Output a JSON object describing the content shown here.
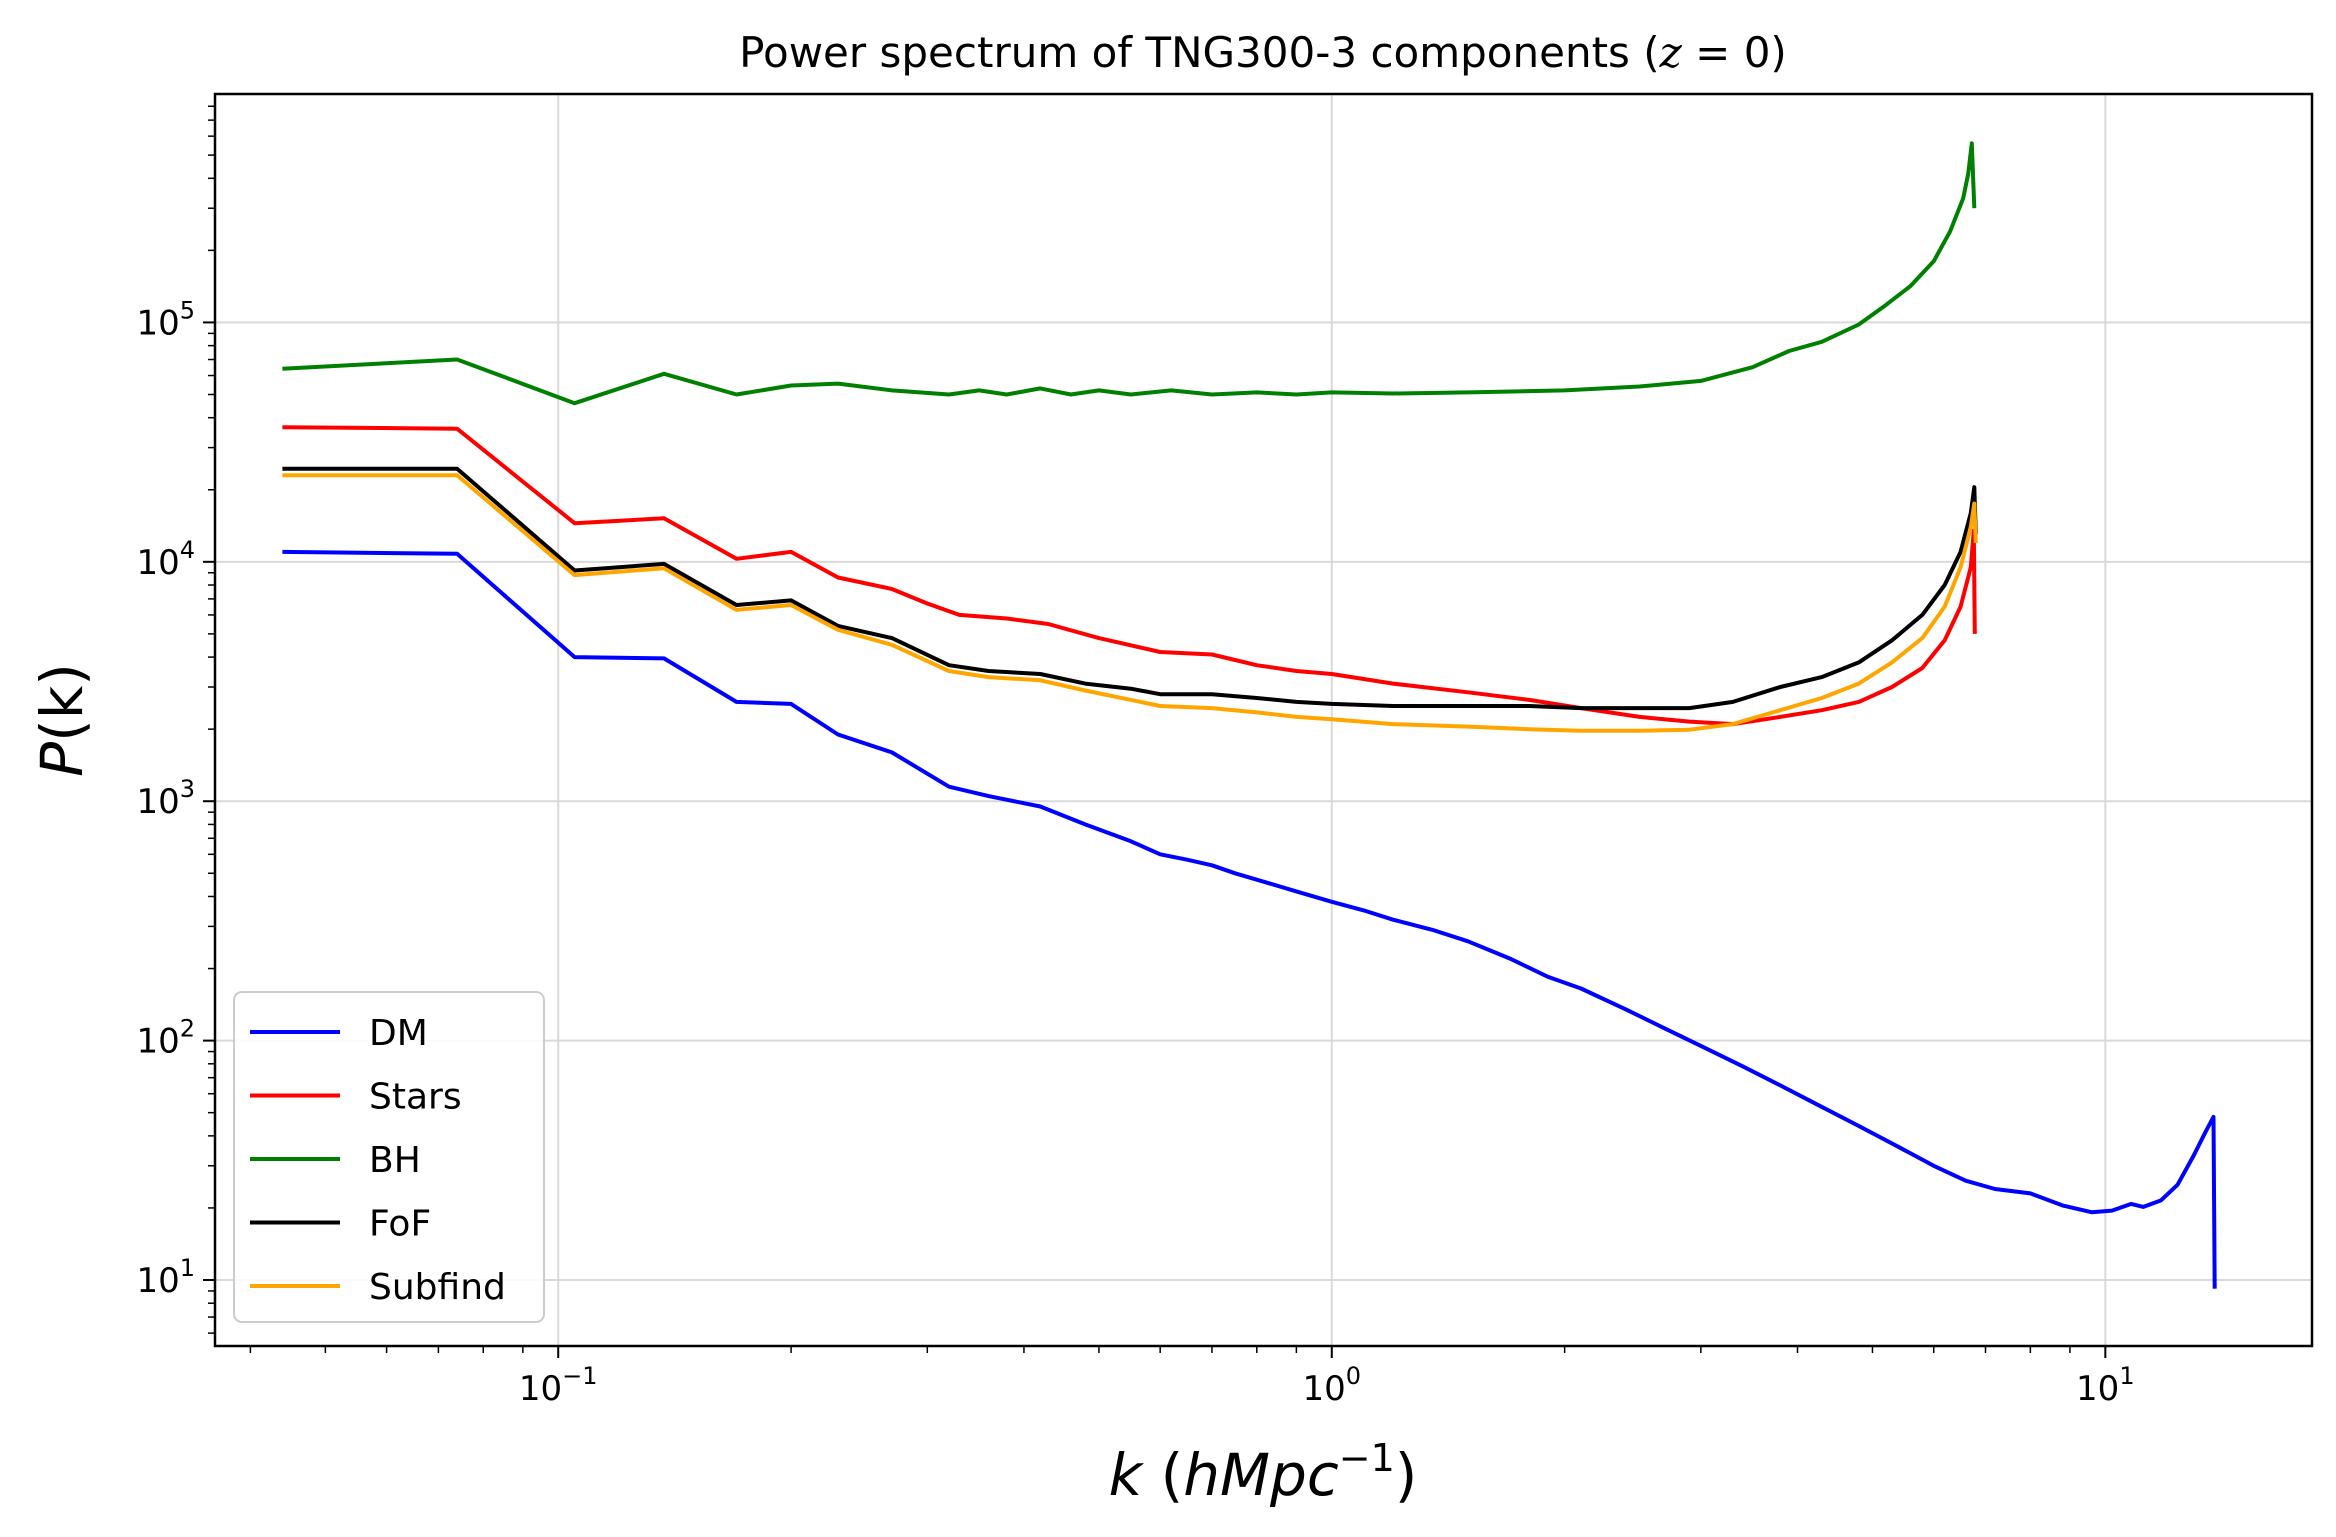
{
  "chart_data": {
    "type": "line",
    "title": "Power spectrum of TNG300-3 components (",
    "title_math": "z",
    "title_tail": " = 0)",
    "xlabel_var": "k",
    "xlabel_units_open": "(",
    "xlabel_units": "hMpc",
    "xlabel_exp": "−1",
    "xlabel_units_close": ")",
    "ylabel_var": "P",
    "ylabel_arg": "(k)",
    "xscale": "log",
    "yscale": "log",
    "xlim": [
      0.036,
      18.5
    ],
    "ylim": [
      5.3,
      900000
    ],
    "grid": true,
    "legend_position": "lower-left",
    "x_ticks": [
      {
        "value": 0.1,
        "base": "10",
        "exp": "−1"
      },
      {
        "value": 1,
        "base": "10",
        "exp": "0"
      },
      {
        "value": 10,
        "base": "10",
        "exp": "1"
      }
    ],
    "y_ticks": [
      {
        "value": 10,
        "base": "10",
        "exp": "1"
      },
      {
        "value": 100,
        "base": "10",
        "exp": "2"
      },
      {
        "value": 1000,
        "base": "10",
        "exp": "3"
      },
      {
        "value": 10000,
        "base": "10",
        "exp": "4"
      },
      {
        "value": 100000,
        "base": "10",
        "exp": "5"
      }
    ],
    "series": [
      {
        "name": "DM",
        "color": "#0000ff",
        "points": [
          [
            0.044,
            11000
          ],
          [
            0.074,
            10800
          ],
          [
            0.105,
            4000
          ],
          [
            0.137,
            3950
          ],
          [
            0.17,
            2600
          ],
          [
            0.2,
            2550
          ],
          [
            0.23,
            1900
          ],
          [
            0.27,
            1600
          ],
          [
            0.32,
            1150
          ],
          [
            0.36,
            1050
          ],
          [
            0.42,
            950
          ],
          [
            0.48,
            800
          ],
          [
            0.55,
            680
          ],
          [
            0.6,
            600
          ],
          [
            0.65,
            570
          ],
          [
            0.7,
            540
          ],
          [
            0.75,
            500
          ],
          [
            0.8,
            470
          ],
          [
            0.9,
            420
          ],
          [
            1.0,
            380
          ],
          [
            1.1,
            350
          ],
          [
            1.2,
            320
          ],
          [
            1.35,
            290
          ],
          [
            1.5,
            260
          ],
          [
            1.7,
            220
          ],
          [
            1.9,
            185
          ],
          [
            2.1,
            165
          ],
          [
            2.4,
            135
          ],
          [
            2.7,
            112
          ],
          [
            3.0,
            95
          ],
          [
            3.4,
            78
          ],
          [
            3.8,
            65
          ],
          [
            4.2,
            55
          ],
          [
            4.8,
            44
          ],
          [
            5.4,
            36
          ],
          [
            6.0,
            30
          ],
          [
            6.6,
            26
          ],
          [
            7.2,
            24
          ],
          [
            8.0,
            23
          ],
          [
            8.8,
            20.5
          ],
          [
            9.6,
            19.2
          ],
          [
            10.2,
            19.5
          ],
          [
            10.8,
            20.8
          ],
          [
            11.2,
            20.2
          ],
          [
            11.8,
            21.5
          ],
          [
            12.4,
            25
          ],
          [
            13.0,
            33
          ],
          [
            13.5,
            42
          ],
          [
            13.8,
            48
          ],
          [
            13.85,
            9.2
          ]
        ]
      },
      {
        "name": "Stars",
        "color": "#ff0000",
        "points": [
          [
            0.044,
            36500
          ],
          [
            0.074,
            36000
          ],
          [
            0.105,
            14500
          ],
          [
            0.137,
            15200
          ],
          [
            0.17,
            10300
          ],
          [
            0.2,
            11000
          ],
          [
            0.23,
            8600
          ],
          [
            0.27,
            7700
          ],
          [
            0.3,
            6700
          ],
          [
            0.33,
            6000
          ],
          [
            0.38,
            5800
          ],
          [
            0.43,
            5500
          ],
          [
            0.5,
            4800
          ],
          [
            0.6,
            4200
          ],
          [
            0.7,
            4100
          ],
          [
            0.8,
            3700
          ],
          [
            0.9,
            3500
          ],
          [
            1.0,
            3400
          ],
          [
            1.2,
            3100
          ],
          [
            1.5,
            2850
          ],
          [
            1.8,
            2650
          ],
          [
            2.1,
            2450
          ],
          [
            2.5,
            2250
          ],
          [
            2.9,
            2150
          ],
          [
            3.3,
            2100
          ],
          [
            3.8,
            2250
          ],
          [
            4.3,
            2400
          ],
          [
            4.8,
            2600
          ],
          [
            5.3,
            3000
          ],
          [
            5.8,
            3600
          ],
          [
            6.2,
            4700
          ],
          [
            6.5,
            6500
          ],
          [
            6.7,
            9500
          ],
          [
            6.76,
            13500
          ],
          [
            6.78,
            5000
          ]
        ]
      },
      {
        "name": "BH",
        "color": "#008000",
        "points": [
          [
            0.044,
            64000
          ],
          [
            0.074,
            70000
          ],
          [
            0.105,
            46000
          ],
          [
            0.137,
            61000
          ],
          [
            0.17,
            50000
          ],
          [
            0.2,
            54500
          ],
          [
            0.23,
            55500
          ],
          [
            0.27,
            52000
          ],
          [
            0.32,
            50000
          ],
          [
            0.35,
            52000
          ],
          [
            0.38,
            50000
          ],
          [
            0.42,
            53000
          ],
          [
            0.46,
            50000
          ],
          [
            0.5,
            52000
          ],
          [
            0.55,
            50000
          ],
          [
            0.62,
            52000
          ],
          [
            0.7,
            50000
          ],
          [
            0.8,
            51000
          ],
          [
            0.9,
            50000
          ],
          [
            1.0,
            51000
          ],
          [
            1.2,
            50500
          ],
          [
            1.5,
            51000
          ],
          [
            2.0,
            52000
          ],
          [
            2.5,
            54000
          ],
          [
            3.0,
            57000
          ],
          [
            3.5,
            65000
          ],
          [
            3.9,
            76000
          ],
          [
            4.3,
            83000
          ],
          [
            4.8,
            98000
          ],
          [
            5.2,
            118000
          ],
          [
            5.6,
            142000
          ],
          [
            6.0,
            180000
          ],
          [
            6.3,
            240000
          ],
          [
            6.55,
            330000
          ],
          [
            6.65,
            420000
          ],
          [
            6.72,
            560000
          ],
          [
            6.77,
            300000
          ]
        ]
      },
      {
        "name": "FoF",
        "color": "#000000",
        "points": [
          [
            0.044,
            24500
          ],
          [
            0.074,
            24500
          ],
          [
            0.105,
            9200
          ],
          [
            0.137,
            9800
          ],
          [
            0.17,
            6600
          ],
          [
            0.2,
            6900
          ],
          [
            0.23,
            5400
          ],
          [
            0.27,
            4800
          ],
          [
            0.32,
            3700
          ],
          [
            0.36,
            3500
          ],
          [
            0.42,
            3400
          ],
          [
            0.48,
            3100
          ],
          [
            0.55,
            2950
          ],
          [
            0.6,
            2800
          ],
          [
            0.7,
            2800
          ],
          [
            0.8,
            2700
          ],
          [
            0.9,
            2600
          ],
          [
            1.0,
            2550
          ],
          [
            1.2,
            2500
          ],
          [
            1.5,
            2500
          ],
          [
            1.8,
            2500
          ],
          [
            2.1,
            2450
          ],
          [
            2.5,
            2450
          ],
          [
            2.9,
            2450
          ],
          [
            3.3,
            2600
          ],
          [
            3.8,
            3000
          ],
          [
            4.3,
            3300
          ],
          [
            4.8,
            3800
          ],
          [
            5.3,
            4700
          ],
          [
            5.8,
            6000
          ],
          [
            6.2,
            8000
          ],
          [
            6.5,
            11000
          ],
          [
            6.7,
            16000
          ],
          [
            6.77,
            20500
          ],
          [
            6.8,
            13000
          ]
        ]
      },
      {
        "name": "Subfind",
        "color": "#ffa500",
        "points": [
          [
            0.044,
            23000
          ],
          [
            0.074,
            23000
          ],
          [
            0.105,
            8800
          ],
          [
            0.137,
            9400
          ],
          [
            0.17,
            6300
          ],
          [
            0.2,
            6600
          ],
          [
            0.23,
            5200
          ],
          [
            0.27,
            4500
          ],
          [
            0.32,
            3500
          ],
          [
            0.36,
            3300
          ],
          [
            0.42,
            3200
          ],
          [
            0.48,
            2900
          ],
          [
            0.55,
            2650
          ],
          [
            0.6,
            2500
          ],
          [
            0.7,
            2450
          ],
          [
            0.8,
            2350
          ],
          [
            0.9,
            2250
          ],
          [
            1.0,
            2200
          ],
          [
            1.2,
            2100
          ],
          [
            1.5,
            2050
          ],
          [
            1.8,
            2000
          ],
          [
            2.1,
            1970
          ],
          [
            2.5,
            1970
          ],
          [
            2.9,
            1990
          ],
          [
            3.3,
            2100
          ],
          [
            3.8,
            2400
          ],
          [
            4.3,
            2700
          ],
          [
            4.8,
            3100
          ],
          [
            5.3,
            3800
          ],
          [
            5.8,
            4800
          ],
          [
            6.2,
            6500
          ],
          [
            6.5,
            9500
          ],
          [
            6.7,
            14000
          ],
          [
            6.77,
            17500
          ],
          [
            6.8,
            12000
          ]
        ]
      }
    ]
  }
}
